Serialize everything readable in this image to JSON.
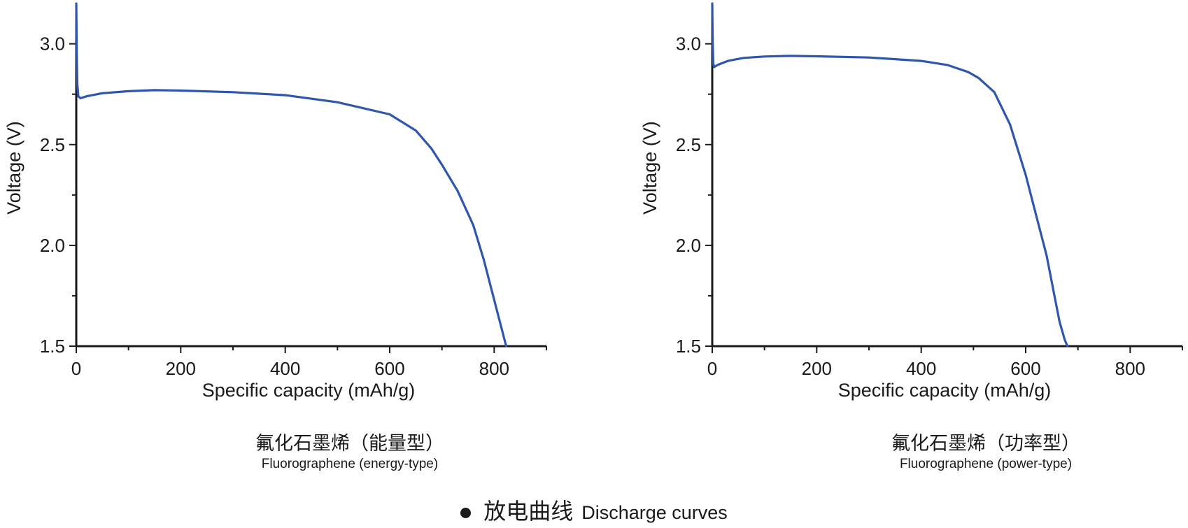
{
  "chart_data": [
    {
      "type": "line",
      "title": "氟化石墨烯（能量型）",
      "subtitle": "Fluorographene (energy-type)",
      "xlabel": "Specific capacity (mAh/g)",
      "ylabel": "Voltage (V)",
      "xlim": [
        0,
        900
      ],
      "ylim": [
        1.5,
        3.2
      ],
      "xticks": [
        0,
        200,
        400,
        600,
        800
      ],
      "xtick_labels": [
        "0",
        "200",
        "400",
        "600",
        "800"
      ],
      "yticks": [
        1.5,
        2.0,
        2.5,
        3.0
      ],
      "ytick_labels": [
        "1.5",
        "2.0",
        "2.5",
        "3.0"
      ],
      "color": "#2f56ad",
      "series": [
        {
          "name": "Discharge curve",
          "x": [
            0,
            1,
            2,
            4,
            8,
            20,
            50,
            100,
            150,
            200,
            300,
            400,
            500,
            600,
            650,
            680,
            700,
            730,
            760,
            780,
            800,
            815,
            823
          ],
          "y": [
            3.2,
            2.95,
            2.8,
            2.74,
            2.73,
            2.74,
            2.755,
            2.765,
            2.77,
            2.768,
            2.76,
            2.745,
            2.71,
            2.65,
            2.57,
            2.48,
            2.4,
            2.27,
            2.1,
            1.93,
            1.73,
            1.58,
            1.5
          ]
        }
      ]
    },
    {
      "type": "line",
      "title": "氟化石墨烯（功率型）",
      "subtitle": "Fluorographene (power-type)",
      "xlabel": "Specific capacity (mAh/g)",
      "ylabel": "Voltage (V)",
      "xlim": [
        0,
        900
      ],
      "ylim": [
        1.5,
        3.2
      ],
      "xticks": [
        0,
        200,
        400,
        600,
        800
      ],
      "xtick_labels": [
        "0",
        "200",
        "400",
        "600",
        "800"
      ],
      "yticks": [
        1.5,
        2.0,
        2.5,
        3.0
      ],
      "ytick_labels": [
        "1.5",
        "2.0",
        "2.5",
        "3.0"
      ],
      "color": "#2f56ad",
      "series": [
        {
          "name": "Discharge curve",
          "x": [
            0,
            1,
            2,
            4,
            10,
            30,
            60,
            100,
            150,
            200,
            300,
            400,
            450,
            490,
            510,
            540,
            570,
            600,
            620,
            640,
            655,
            665,
            675,
            680
          ],
          "y": [
            3.2,
            3.0,
            2.9,
            2.885,
            2.895,
            2.915,
            2.93,
            2.937,
            2.94,
            2.938,
            2.932,
            2.915,
            2.895,
            2.86,
            2.83,
            2.76,
            2.6,
            2.35,
            2.15,
            1.95,
            1.75,
            1.62,
            1.53,
            1.5
          ]
        }
      ]
    }
  ],
  "footer": {
    "label_cn": "放电曲线",
    "label_en": "Discharge curves"
  }
}
